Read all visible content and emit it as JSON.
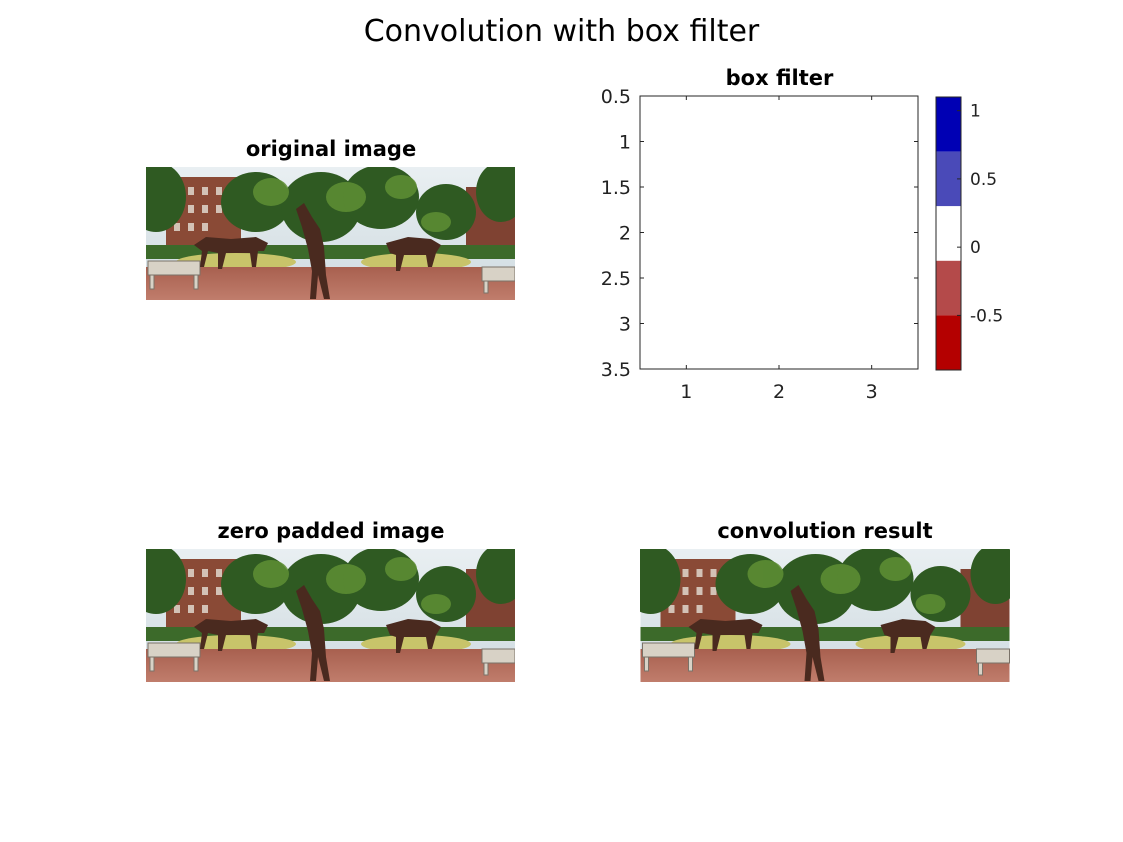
{
  "figure_title": "Convolution with box filter",
  "panels": {
    "original": {
      "title": "original image"
    },
    "zero_padded": {
      "title": "zero padded image"
    },
    "result": {
      "title": "convolution result"
    },
    "filter": {
      "title": "box filter"
    }
  },
  "colors": {
    "sky": "#dce6ea",
    "foliage_dark": "#2f5a22",
    "foliage_light": "#5f8f34",
    "brick": "#8a4a36",
    "pavement": "#b1695a",
    "statue": "#4a2a1f",
    "grass": "#c8c46a",
    "bench": "#d8d2c6"
  },
  "chart_data": {
    "type": "heatmap",
    "title": "box filter",
    "xlabel": "",
    "ylabel": "",
    "x_ticks": [
      "1",
      "2",
      "3"
    ],
    "y_ticks": [
      "0.5",
      "1",
      "1.5",
      "2",
      "2.5",
      "3",
      "3.5"
    ],
    "xlim": [
      0.5,
      3.5
    ],
    "ylim": [
      0.5,
      3.5
    ],
    "y_reversed": true,
    "values": [
      [
        0,
        0,
        0
      ],
      [
        0,
        0,
        0
      ],
      [
        0,
        0,
        0
      ]
    ],
    "colorbar": {
      "ticks": [
        "1",
        "0.5",
        "0",
        "-0.5"
      ],
      "tick_values": [
        1,
        0.5,
        0,
        -0.5
      ],
      "range": [
        -0.9,
        1.1
      ],
      "segments": [
        {
          "from": 0.7,
          "to": 1.1,
          "color": "#0000b4"
        },
        {
          "from": 0.3,
          "to": 0.7,
          "color": "#4a4ab8"
        },
        {
          "from": -0.1,
          "to": 0.3,
          "color": "#ffffff"
        },
        {
          "from": -0.5,
          "to": -0.1,
          "color": "#b44a4a"
        },
        {
          "from": -0.9,
          "to": -0.5,
          "color": "#b40000"
        }
      ]
    }
  }
}
